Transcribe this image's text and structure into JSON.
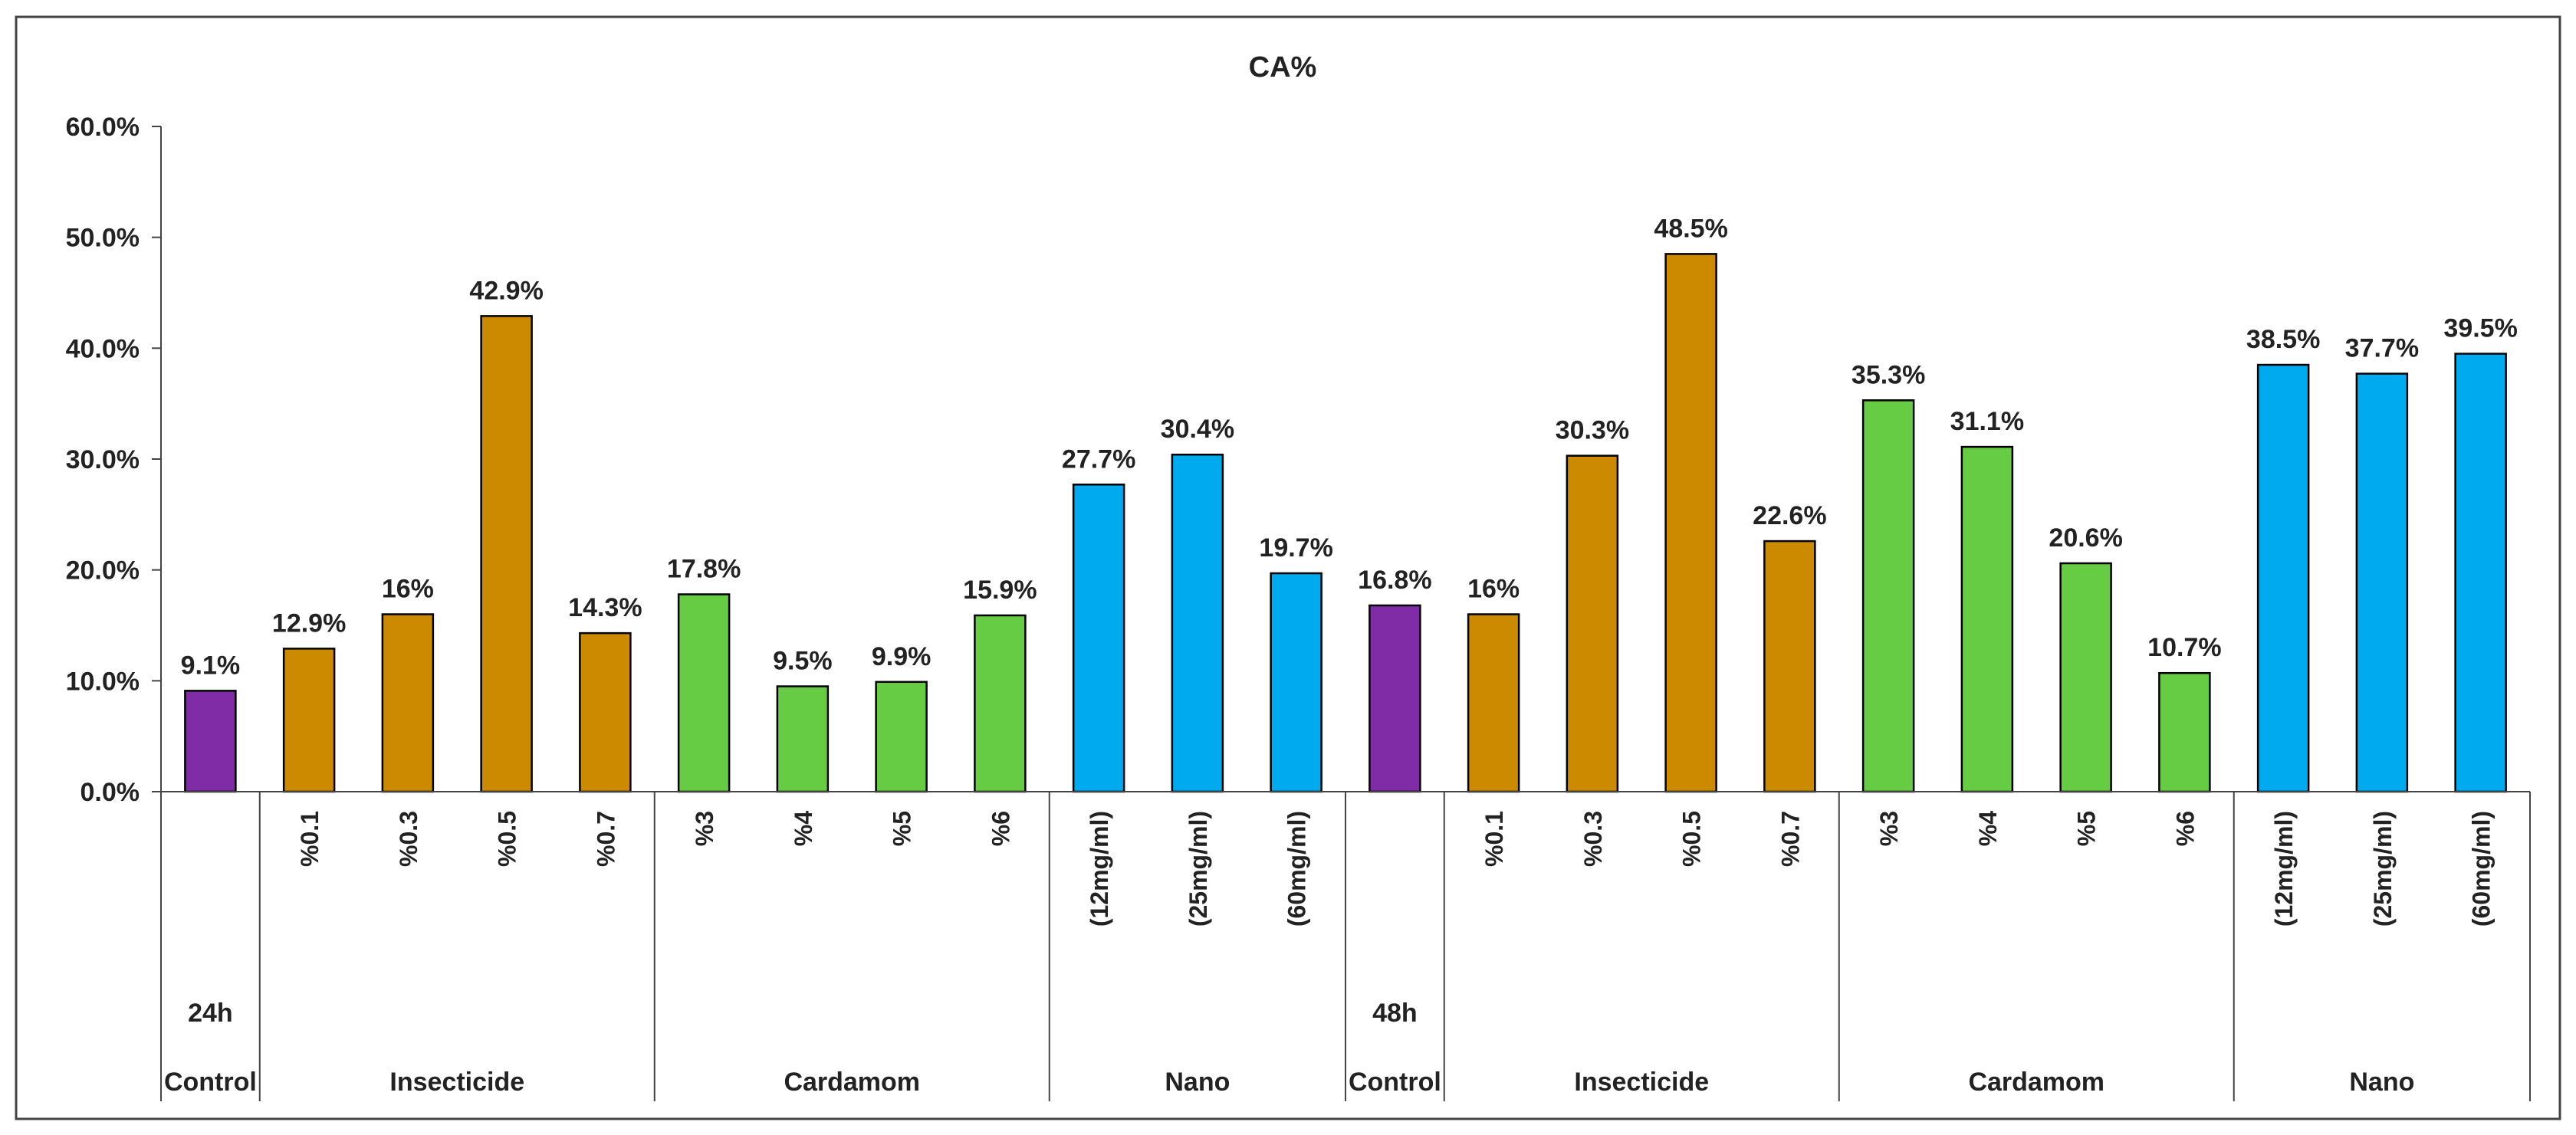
{
  "chart_data": {
    "type": "bar",
    "title": "CA%",
    "xlabel": "",
    "ylabel": "",
    "ylim": [
      0,
      60
    ],
    "y_ticks": [
      "0.0%",
      "10.0%",
      "20.0%",
      "30.0%",
      "40.0%",
      "50.0%",
      "60.0%"
    ],
    "grid": false,
    "legend": "none",
    "colors": {
      "Control": "#7F2CA6",
      "Insecticide": "#CC8A00",
      "Cardamom": "#66CC44",
      "Nano": "#00AAEE"
    },
    "bars": [
      {
        "time": "24h",
        "group": "Control",
        "label": "",
        "value": 9.1,
        "display": "9.1%"
      },
      {
        "time": "24h",
        "group": "Insecticide",
        "label": "%0.1",
        "value": 12.9,
        "display": "12.9%"
      },
      {
        "time": "24h",
        "group": "Insecticide",
        "label": "%0.3",
        "value": 16.0,
        "display": "16%"
      },
      {
        "time": "24h",
        "group": "Insecticide",
        "label": "%0.5",
        "value": 42.9,
        "display": "42.9%"
      },
      {
        "time": "24h",
        "group": "Insecticide",
        "label": "%0.7",
        "value": 14.3,
        "display": "14.3%"
      },
      {
        "time": "24h",
        "group": "Cardamom",
        "label": "%3",
        "value": 17.8,
        "display": "17.8%"
      },
      {
        "time": "24h",
        "group": "Cardamom",
        "label": "%4",
        "value": 9.5,
        "display": "9.5%"
      },
      {
        "time": "24h",
        "group": "Cardamom",
        "label": "%5",
        "value": 9.9,
        "display": "9.9%"
      },
      {
        "time": "24h",
        "group": "Cardamom",
        "label": "%6",
        "value": 15.9,
        "display": "15.9%"
      },
      {
        "time": "24h",
        "group": "Nano",
        "label": "(12mg/ml)",
        "value": 27.7,
        "display": "27.7%"
      },
      {
        "time": "24h",
        "group": "Nano",
        "label": "(25mg/ml)",
        "value": 30.4,
        "display": "30.4%"
      },
      {
        "time": "24h",
        "group": "Nano",
        "label": "(60mg/ml)",
        "value": 19.7,
        "display": "19.7%"
      },
      {
        "time": "48h",
        "group": "Control",
        "label": "",
        "value": 16.8,
        "display": "16.8%"
      },
      {
        "time": "48h",
        "group": "Insecticide",
        "label": "%0.1",
        "value": 16.0,
        "display": "16%"
      },
      {
        "time": "48h",
        "group": "Insecticide",
        "label": "%0.3",
        "value": 30.3,
        "display": "30.3%"
      },
      {
        "time": "48h",
        "group": "Insecticide",
        "label": "%0.5",
        "value": 48.5,
        "display": "48.5%"
      },
      {
        "time": "48h",
        "group": "Insecticide",
        "label": "%0.7",
        "value": 22.6,
        "display": "22.6%"
      },
      {
        "time": "48h",
        "group": "Cardamom",
        "label": "%3",
        "value": 35.3,
        "display": "35.3%"
      },
      {
        "time": "48h",
        "group": "Cardamom",
        "label": "%4",
        "value": 31.1,
        "display": "31.1%"
      },
      {
        "time": "48h",
        "group": "Cardamom",
        "label": "%5",
        "value": 20.6,
        "display": "20.6%"
      },
      {
        "time": "48h",
        "group": "Cardamom",
        "label": "%6",
        "value": 10.7,
        "display": "10.7%"
      },
      {
        "time": "48h",
        "group": "Nano",
        "label": "(12mg/ml)",
        "value": 38.5,
        "display": "38.5%"
      },
      {
        "time": "48h",
        "group": "Nano",
        "label": "(25mg/ml)",
        "value": 37.7,
        "display": "37.7%"
      },
      {
        "time": "48h",
        "group": "Nano",
        "label": "(60mg/ml)",
        "value": 39.5,
        "display": "39.5%"
      }
    ]
  }
}
